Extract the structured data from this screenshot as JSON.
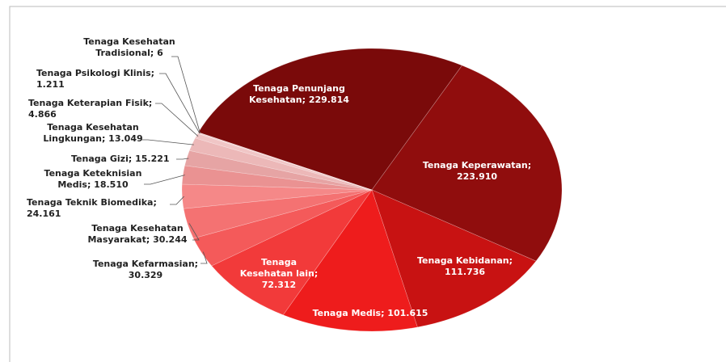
{
  "chart_data": {
    "type": "pie",
    "values": [
      229814,
      223910,
      111736,
      101615,
      72312,
      30329,
      30244,
      24161,
      18510,
      15221,
      13049,
      4866,
      1211,
      6
    ],
    "value_labels": [
      "Tenaga Penunjang Kesehatan; 229.814",
      "Tenaga Keperawatan; 223.910",
      "Tenaga Kebidanan; 111.736",
      "Tenaga Medis; 101.615",
      "Tenaga Kesehatan lain; 72.312",
      "Tenaga Kefarmasian; 30.329",
      "Tenaga Kesehatan Masyarakat; 30.244",
      "Tenaga Teknik Biomedika; 24.161",
      "Tenaga Keteknisian Medis; 18.510",
      "Tenaga Gizi; 15.221",
      "Tenaga Kesehatan Lingkungan; 13.049",
      "Tenaga Keterapian Fisik; 4.866",
      "Tenaga Psikologi Klinis; 1.211",
      "Tenaga Kesehatan Tradisional; 6"
    ],
    "colors": [
      "#7a0a0a",
      "#900d0d",
      "#c81212",
      "#ee1c1c",
      "#f23a3a",
      "#f45a5a",
      "#f47272",
      "#f58888",
      "#ea9292",
      "#e6a4a4",
      "#ecb8b8",
      "#f0c6c6",
      "#f3d0d0",
      "#f6dada"
    ]
  }
}
